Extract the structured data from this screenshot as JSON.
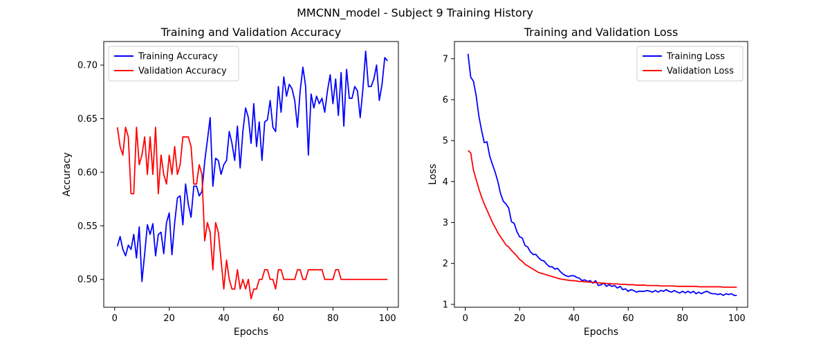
{
  "suptitle": "MMCNN_model - Subject 9 Training History",
  "chart_data": [
    {
      "type": "line",
      "title": "Training and Validation Accuracy",
      "xlabel": "Epochs",
      "ylabel": "Accuracy",
      "xlim": [
        -4,
        104
      ],
      "ylim": [
        0.474,
        0.722
      ],
      "xticks": [
        0,
        20,
        40,
        60,
        80,
        100
      ],
      "yticks": [
        0.5,
        0.55,
        0.6,
        0.65,
        0.7
      ],
      "ytick_labels": [
        "0.50",
        "0.55",
        "0.60",
        "0.65",
        "0.70"
      ],
      "grid": false,
      "legend_position": "top-left",
      "series": [
        {
          "name": "Training Accuracy",
          "color": "#0000ff",
          "values": [
            0.531,
            0.54,
            0.528,
            0.522,
            0.532,
            0.528,
            0.542,
            0.52,
            0.549,
            0.498,
            0.524,
            0.551,
            0.542,
            0.552,
            0.522,
            0.542,
            0.544,
            0.524,
            0.553,
            0.562,
            0.523,
            0.553,
            0.576,
            0.578,
            0.551,
            0.589,
            0.57,
            0.558,
            0.587,
            0.587,
            0.578,
            0.582,
            0.61,
            0.63,
            0.651,
            0.587,
            0.613,
            0.611,
            0.598,
            0.607,
            0.611,
            0.638,
            0.627,
            0.611,
            0.643,
            0.604,
            0.638,
            0.66,
            0.651,
            0.627,
            0.664,
            0.624,
            0.647,
            0.611,
            0.647,
            0.649,
            0.667,
            0.642,
            0.638,
            0.68,
            0.656,
            0.689,
            0.671,
            0.682,
            0.678,
            0.667,
            0.642,
            0.676,
            0.698,
            0.68,
            0.616,
            0.673,
            0.66,
            0.671,
            0.664,
            0.669,
            0.656,
            0.676,
            0.691,
            0.664,
            0.687,
            0.653,
            0.693,
            0.643,
            0.696,
            0.669,
            0.669,
            0.68,
            0.676,
            0.651,
            0.678,
            0.713,
            0.68,
            0.68,
            0.687,
            0.7,
            0.667,
            0.682,
            0.707,
            0.704
          ]
        },
        {
          "name": "Validation Accuracy",
          "color": "#ff0000",
          "values": [
            0.642,
            0.624,
            0.616,
            0.642,
            0.633,
            0.58,
            0.58,
            0.642,
            0.607,
            0.616,
            0.633,
            0.598,
            0.633,
            0.598,
            0.642,
            0.58,
            0.616,
            0.598,
            0.589,
            0.616,
            0.598,
            0.624,
            0.598,
            0.607,
            0.633,
            0.633,
            0.633,
            0.624,
            0.589,
            0.589,
            0.607,
            0.598,
            0.536,
            0.553,
            0.544,
            0.509,
            0.553,
            0.544,
            0.518,
            0.491,
            0.518,
            0.5,
            0.491,
            0.491,
            0.509,
            0.491,
            0.5,
            0.491,
            0.5,
            0.482,
            0.491,
            0.491,
            0.5,
            0.5,
            0.509,
            0.509,
            0.5,
            0.5,
            0.491,
            0.509,
            0.509,
            0.5,
            0.5,
            0.5,
            0.5,
            0.5,
            0.509,
            0.509,
            0.5,
            0.5,
            0.509,
            0.509,
            0.509,
            0.509,
            0.509,
            0.509,
            0.5,
            0.5,
            0.5,
            0.5,
            0.509,
            0.509,
            0.5,
            0.5,
            0.5,
            0.5,
            0.5,
            0.5,
            0.5,
            0.5,
            0.5,
            0.5,
            0.5,
            0.5,
            0.5,
            0.5,
            0.5,
            0.5,
            0.5,
            0.5
          ]
        }
      ]
    },
    {
      "type": "line",
      "title": "Training and Validation Loss",
      "xlabel": "Epochs",
      "ylabel": "Loss",
      "xlim": [
        -4,
        104
      ],
      "ylim": [
        0.93,
        7.42
      ],
      "xticks": [
        0,
        20,
        40,
        60,
        80,
        100
      ],
      "yticks": [
        1,
        2,
        3,
        4,
        5,
        6,
        7
      ],
      "ytick_labels": [
        "1",
        "2",
        "3",
        "4",
        "5",
        "6",
        "7"
      ],
      "grid": false,
      "legend_position": "top-right",
      "series": [
        {
          "name": "Training Loss",
          "color": "#0000ff",
          "values": [
            7.12,
            6.55,
            6.45,
            6.1,
            5.6,
            5.25,
            4.95,
            4.97,
            4.62,
            4.42,
            4.23,
            4.0,
            3.7,
            3.52,
            3.45,
            3.35,
            3.02,
            2.98,
            2.78,
            2.65,
            2.62,
            2.44,
            2.4,
            2.28,
            2.22,
            2.22,
            2.14,
            2.08,
            2.06,
            1.98,
            1.92,
            1.92,
            1.86,
            1.88,
            1.8,
            1.74,
            1.7,
            1.68,
            1.7,
            1.7,
            1.66,
            1.64,
            1.58,
            1.6,
            1.56,
            1.58,
            1.52,
            1.58,
            1.46,
            1.48,
            1.52,
            1.44,
            1.48,
            1.44,
            1.46,
            1.4,
            1.44,
            1.36,
            1.38,
            1.32,
            1.36,
            1.34,
            1.3,
            1.32,
            1.32,
            1.32,
            1.34,
            1.32,
            1.3,
            1.34,
            1.3,
            1.34,
            1.32,
            1.36,
            1.32,
            1.3,
            1.34,
            1.3,
            1.28,
            1.32,
            1.28,
            1.32,
            1.28,
            1.32,
            1.26,
            1.3,
            1.26,
            1.3,
            1.32,
            1.28,
            1.26,
            1.26,
            1.24,
            1.26,
            1.22,
            1.26,
            1.24,
            1.26,
            1.22,
            1.22
          ]
        },
        {
          "name": "Validation Loss",
          "color": "#ff0000",
          "values": [
            4.76,
            4.7,
            4.28,
            4.05,
            3.82,
            3.62,
            3.45,
            3.3,
            3.15,
            3.0,
            2.88,
            2.75,
            2.65,
            2.55,
            2.45,
            2.4,
            2.32,
            2.25,
            2.18,
            2.1,
            2.05,
            1.98,
            1.94,
            1.9,
            1.86,
            1.82,
            1.78,
            1.76,
            1.74,
            1.72,
            1.7,
            1.68,
            1.66,
            1.64,
            1.62,
            1.61,
            1.6,
            1.59,
            1.58,
            1.58,
            1.57,
            1.56,
            1.56,
            1.55,
            1.55,
            1.54,
            1.54,
            1.53,
            1.53,
            1.52,
            1.52,
            1.51,
            1.51,
            1.5,
            1.5,
            1.5,
            1.49,
            1.49,
            1.49,
            1.48,
            1.48,
            1.48,
            1.47,
            1.47,
            1.47,
            1.47,
            1.46,
            1.46,
            1.46,
            1.46,
            1.46,
            1.45,
            1.45,
            1.45,
            1.45,
            1.45,
            1.45,
            1.44,
            1.44,
            1.44,
            1.44,
            1.44,
            1.44,
            1.44,
            1.44,
            1.43,
            1.43,
            1.43,
            1.43,
            1.43,
            1.43,
            1.43,
            1.43,
            1.43,
            1.42,
            1.42,
            1.42,
            1.42,
            1.42,
            1.42
          ]
        }
      ]
    }
  ]
}
